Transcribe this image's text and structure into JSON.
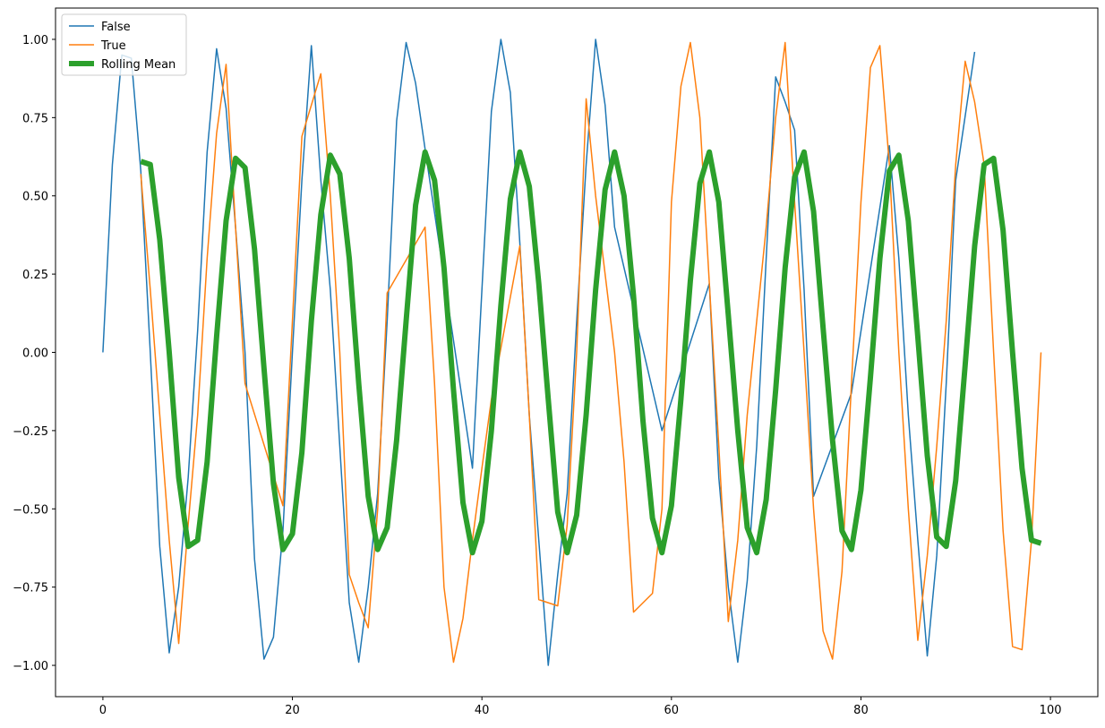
{
  "chart_data": {
    "type": "line",
    "title": "",
    "xlabel": "",
    "ylabel": "",
    "xlim": [
      -5,
      105
    ],
    "ylim": [
      -1.1,
      1.1
    ],
    "xticks": [
      0,
      20,
      40,
      60,
      80,
      100
    ],
    "yticks": [
      -1.0,
      -0.75,
      -0.5,
      -0.25,
      0.0,
      0.25,
      0.5,
      0.75,
      1.0
    ],
    "xtick_labels": [
      "0",
      "20",
      "40",
      "60",
      "80",
      "100"
    ],
    "ytick_labels": [
      "−1.00",
      "−0.75",
      "−0.50",
      "−0.25",
      "0.00",
      "0.25",
      "0.50",
      "0.75",
      "1.00"
    ],
    "grid": false,
    "legend_position": "upper left",
    "series": [
      {
        "name": "False",
        "color": "#1f77b4",
        "width": 1.5,
        "points": [
          [
            0,
            0.0
          ],
          [
            1,
            0.6
          ],
          [
            2,
            0.95
          ],
          [
            3,
            0.94
          ],
          [
            4,
            0.58
          ],
          [
            5,
            0.0
          ],
          [
            6,
            -0.62
          ],
          [
            7,
            -0.96
          ],
          [
            8,
            -0.75
          ],
          [
            9,
            -0.4
          ],
          [
            10,
            0.07
          ],
          [
            11,
            0.64
          ],
          [
            12,
            0.97
          ],
          [
            13,
            0.78
          ],
          [
            14,
            0.4
          ],
          [
            15,
            0.0
          ],
          [
            16,
            -0.66
          ],
          [
            17,
            -0.98
          ],
          [
            18,
            -0.91
          ],
          [
            19,
            -0.57
          ],
          [
            20,
            0.0
          ],
          [
            21,
            0.55
          ],
          [
            22,
            0.98
          ],
          [
            23,
            0.55
          ],
          [
            24,
            0.2
          ],
          [
            25,
            -0.3
          ],
          [
            26,
            -0.8
          ],
          [
            27,
            -0.99
          ],
          [
            28,
            -0.75
          ],
          [
            29,
            -0.45
          ],
          [
            30,
            0.1
          ],
          [
            31,
            0.74
          ],
          [
            32,
            0.99
          ],
          [
            33,
            0.86
          ],
          [
            34,
            0.65
          ],
          [
            39,
            -0.37
          ],
          [
            40,
            0.2
          ],
          [
            41,
            0.77
          ],
          [
            42,
            1.0
          ],
          [
            43,
            0.83
          ],
          [
            44,
            0.35
          ],
          [
            45,
            -0.2
          ],
          [
            46,
            -0.6
          ],
          [
            47,
            -1.0
          ],
          [
            48,
            -0.71
          ],
          [
            49,
            -0.45
          ],
          [
            50,
            0.1
          ],
          [
            51,
            0.6
          ],
          [
            52,
            1.0
          ],
          [
            53,
            0.79
          ],
          [
            54,
            0.4
          ],
          [
            59,
            -0.25
          ],
          [
            64,
            0.22
          ],
          [
            65,
            -0.4
          ],
          [
            66,
            -0.75
          ],
          [
            67,
            -0.99
          ],
          [
            68,
            -0.73
          ],
          [
            69,
            -0.3
          ],
          [
            70,
            0.3
          ],
          [
            71,
            0.88
          ],
          [
            72,
            0.8
          ],
          [
            73,
            0.71
          ],
          [
            74,
            0.2
          ],
          [
            75,
            -0.46
          ],
          [
            79,
            -0.13
          ],
          [
            83,
            0.66
          ],
          [
            84,
            0.3
          ],
          [
            85,
            -0.2
          ],
          [
            86,
            -0.6
          ],
          [
            87,
            -0.97
          ],
          [
            88,
            -0.65
          ],
          [
            89,
            -0.1
          ],
          [
            90,
            0.55
          ],
          [
            92,
            0.96
          ]
        ]
      },
      {
        "name": "True",
        "color": "#ff7f0e",
        "width": 1.5,
        "points": [
          [
            4,
            0.57
          ],
          [
            5,
            0.2
          ],
          [
            6,
            -0.2
          ],
          [
            7,
            -0.6
          ],
          [
            8,
            -0.93
          ],
          [
            9,
            -0.55
          ],
          [
            10,
            -0.2
          ],
          [
            11,
            0.3
          ],
          [
            12,
            0.7
          ],
          [
            13,
            0.92
          ],
          [
            14,
            0.4
          ],
          [
            15,
            -0.1
          ],
          [
            19,
            -0.49
          ],
          [
            20,
            0.1
          ],
          [
            21,
            0.69
          ],
          [
            23,
            0.89
          ],
          [
            24,
            0.5
          ],
          [
            25,
            0.0
          ],
          [
            26,
            -0.71
          ],
          [
            27,
            -0.8
          ],
          [
            28,
            -0.88
          ],
          [
            29,
            -0.5
          ],
          [
            30,
            0.19
          ],
          [
            34,
            0.4
          ],
          [
            35,
            -0.1
          ],
          [
            36,
            -0.75
          ],
          [
            37,
            -0.99
          ],
          [
            38,
            -0.85
          ],
          [
            39,
            -0.6
          ],
          [
            40,
            -0.37
          ],
          [
            41,
            -0.15
          ],
          [
            44,
            0.34
          ],
          [
            45,
            -0.2
          ],
          [
            46,
            -0.79
          ],
          [
            48,
            -0.81
          ],
          [
            49,
            -0.55
          ],
          [
            50,
            0.0
          ],
          [
            51,
            0.81
          ],
          [
            52,
            0.5
          ],
          [
            53,
            0.25
          ],
          [
            54,
            0.0
          ],
          [
            55,
            -0.35
          ],
          [
            56,
            -0.83
          ],
          [
            58,
            -0.77
          ],
          [
            59,
            -0.5
          ],
          [
            60,
            0.48
          ],
          [
            61,
            0.85
          ],
          [
            62,
            0.99
          ],
          [
            63,
            0.75
          ],
          [
            64,
            0.22
          ],
          [
            65,
            -0.3
          ],
          [
            66,
            -0.86
          ],
          [
            67,
            -0.6
          ],
          [
            68,
            -0.2
          ],
          [
            69,
            0.1
          ],
          [
            70,
            0.4
          ],
          [
            71,
            0.75
          ],
          [
            72,
            0.99
          ],
          [
            73,
            0.48
          ],
          [
            74,
            0.0
          ],
          [
            75,
            -0.5
          ],
          [
            76,
            -0.89
          ],
          [
            77,
            -0.98
          ],
          [
            78,
            -0.7
          ],
          [
            79,
            -0.1
          ],
          [
            80,
            0.48
          ],
          [
            81,
            0.91
          ],
          [
            82,
            0.98
          ],
          [
            83,
            0.6
          ],
          [
            84,
            0.0
          ],
          [
            85,
            -0.5
          ],
          [
            86,
            -0.92
          ],
          [
            87,
            -0.65
          ],
          [
            88,
            -0.3
          ],
          [
            89,
            0.1
          ],
          [
            90,
            0.6
          ],
          [
            91,
            0.93
          ],
          [
            92,
            0.8
          ],
          [
            93,
            0.6
          ],
          [
            94,
            0.0
          ],
          [
            95,
            -0.57
          ],
          [
            96,
            -0.94
          ],
          [
            97,
            -0.95
          ],
          [
            98,
            -0.6
          ],
          [
            99,
            0.0
          ]
        ]
      },
      {
        "name": "Rolling Mean",
        "color": "#2ca02c",
        "width": 6,
        "points": [
          [
            4,
            0.61
          ],
          [
            5,
            0.6
          ],
          [
            6,
            0.36
          ],
          [
            7,
            0.0
          ],
          [
            8,
            -0.4
          ],
          [
            9,
            -0.62
          ],
          [
            10,
            -0.6
          ],
          [
            11,
            -0.35
          ],
          [
            12,
            0.05
          ],
          [
            13,
            0.42
          ],
          [
            14,
            0.62
          ],
          [
            15,
            0.59
          ],
          [
            16,
            0.33
          ],
          [
            17,
            -0.05
          ],
          [
            18,
            -0.42
          ],
          [
            19,
            -0.63
          ],
          [
            20,
            -0.58
          ],
          [
            21,
            -0.32
          ],
          [
            22,
            0.1
          ],
          [
            23,
            0.44
          ],
          [
            24,
            0.63
          ],
          [
            25,
            0.57
          ],
          [
            26,
            0.3
          ],
          [
            27,
            -0.1
          ],
          [
            28,
            -0.46
          ],
          [
            29,
            -0.63
          ],
          [
            30,
            -0.56
          ],
          [
            31,
            -0.28
          ],
          [
            32,
            0.1
          ],
          [
            33,
            0.47
          ],
          [
            34,
            0.64
          ],
          [
            35,
            0.55
          ],
          [
            36,
            0.27
          ],
          [
            37,
            -0.12
          ],
          [
            38,
            -0.48
          ],
          [
            39,
            -0.64
          ],
          [
            40,
            -0.54
          ],
          [
            41,
            -0.25
          ],
          [
            42,
            0.15
          ],
          [
            43,
            0.49
          ],
          [
            44,
            0.64
          ],
          [
            45,
            0.53
          ],
          [
            46,
            0.22
          ],
          [
            47,
            -0.15
          ],
          [
            48,
            -0.51
          ],
          [
            49,
            -0.64
          ],
          [
            50,
            -0.52
          ],
          [
            51,
            -0.2
          ],
          [
            52,
            0.2
          ],
          [
            53,
            0.52
          ],
          [
            54,
            0.64
          ],
          [
            55,
            0.5
          ],
          [
            56,
            0.18
          ],
          [
            57,
            -0.22
          ],
          [
            58,
            -0.53
          ],
          [
            59,
            -0.64
          ],
          [
            60,
            -0.49
          ],
          [
            61,
            -0.15
          ],
          [
            62,
            0.23
          ],
          [
            63,
            0.54
          ],
          [
            64,
            0.64
          ],
          [
            65,
            0.48
          ],
          [
            66,
            0.12
          ],
          [
            67,
            -0.25
          ],
          [
            68,
            -0.56
          ],
          [
            69,
            -0.64
          ],
          [
            70,
            -0.47
          ],
          [
            71,
            -0.12
          ],
          [
            72,
            0.27
          ],
          [
            73,
            0.56
          ],
          [
            74,
            0.64
          ],
          [
            75,
            0.45
          ],
          [
            76,
            0.08
          ],
          [
            77,
            -0.28
          ],
          [
            78,
            -0.57
          ],
          [
            79,
            -0.63
          ],
          [
            80,
            -0.44
          ],
          [
            81,
            -0.08
          ],
          [
            82,
            0.3
          ],
          [
            83,
            0.58
          ],
          [
            84,
            0.63
          ],
          [
            85,
            0.42
          ],
          [
            86,
            0.05
          ],
          [
            87,
            -0.33
          ],
          [
            88,
            -0.59
          ],
          [
            89,
            -0.62
          ],
          [
            90,
            -0.41
          ],
          [
            91,
            -0.04
          ],
          [
            92,
            0.34
          ],
          [
            93,
            0.6
          ],
          [
            94,
            0.62
          ],
          [
            95,
            0.39
          ],
          [
            96,
            0.0
          ],
          [
            97,
            -0.37
          ],
          [
            98,
            -0.6
          ],
          [
            99,
            -0.61
          ]
        ]
      }
    ]
  }
}
